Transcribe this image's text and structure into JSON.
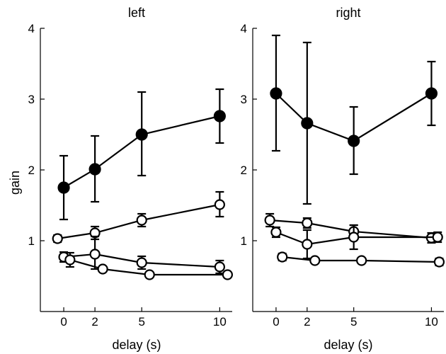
{
  "chart_data": [
    {
      "type": "line",
      "title": "left",
      "xlabel": "delay (s)",
      "ylabel": "gain",
      "xlim": [
        -1.5,
        10.8
      ],
      "ylim": [
        0,
        4
      ],
      "xticks": [
        0,
        2,
        5,
        10
      ],
      "yticks": [
        1,
        2,
        3,
        4
      ],
      "series": [
        {
          "marker": "filled",
          "color": "#000000",
          "points": [
            {
              "x": 0,
              "y": 1.75,
              "lo": 1.3,
              "hi": 2.2
            },
            {
              "x": 2,
              "y": 2.01,
              "lo": 1.55,
              "hi": 2.48
            },
            {
              "x": 5,
              "y": 2.5,
              "lo": 1.92,
              "hi": 3.1
            },
            {
              "x": 10,
              "y": 2.76,
              "lo": 2.38,
              "hi": 3.14
            }
          ]
        },
        {
          "marker": "open",
          "color": "#000000",
          "points": [
            {
              "x": -0.4,
              "y": 1.03,
              "lo": 0.98,
              "hi": 1.08
            },
            {
              "x": 2,
              "y": 1.11,
              "lo": 1.02,
              "hi": 1.2
            },
            {
              "x": 5,
              "y": 1.29,
              "lo": 1.2,
              "hi": 1.38
            },
            {
              "x": 10,
              "y": 1.51,
              "lo": 1.34,
              "hi": 1.69
            }
          ]
        },
        {
          "marker": "open",
          "color": "#000000",
          "points": [
            {
              "x": 0,
              "y": 0.77,
              "lo": 0.7,
              "hi": 0.84
            },
            {
              "x": 2,
              "y": 0.81,
              "lo": 0.6,
              "hi": 1.06
            },
            {
              "x": 5,
              "y": 0.69,
              "lo": 0.6,
              "hi": 0.78
            },
            {
              "x": 10,
              "y": 0.63,
              "lo": 0.54,
              "hi": 0.72
            }
          ]
        },
        {
          "marker": "open",
          "color": "#000000",
          "points": [
            {
              "x": 0.4,
              "y": 0.73,
              "lo": 0.63,
              "hi": 0.83
            },
            {
              "x": 2.5,
              "y": 0.6,
              "lo": 0.57,
              "hi": 0.63
            },
            {
              "x": 5.5,
              "y": 0.52,
              "lo": 0.49,
              "hi": 0.55
            },
            {
              "x": 10.5,
              "y": 0.52,
              "lo": 0.49,
              "hi": 0.55
            }
          ]
        }
      ]
    },
    {
      "type": "line",
      "title": "right",
      "xlabel": "delay (s)",
      "ylabel": "",
      "xlim": [
        -1.5,
        10.8
      ],
      "ylim": [
        0,
        4
      ],
      "xticks": [
        0,
        2,
        5,
        10
      ],
      "yticks": [
        1,
        2,
        3,
        4
      ],
      "series": [
        {
          "marker": "filled",
          "color": "#000000",
          "points": [
            {
              "x": 0,
              "y": 3.08,
              "lo": 2.27,
              "hi": 3.9
            },
            {
              "x": 2,
              "y": 2.66,
              "lo": 1.52,
              "hi": 3.8
            },
            {
              "x": 5,
              "y": 2.41,
              "lo": 1.94,
              "hi": 2.89
            },
            {
              "x": 10,
              "y": 3.08,
              "lo": 2.63,
              "hi": 3.53
            }
          ]
        },
        {
          "marker": "open",
          "color": "#000000",
          "points": [
            {
              "x": -0.4,
              "y": 1.29,
              "lo": 1.2,
              "hi": 1.38
            },
            {
              "x": 2,
              "y": 1.25,
              "lo": 1.18,
              "hi": 1.32
            },
            {
              "x": 5,
              "y": 1.13,
              "lo": 1.04,
              "hi": 1.22
            },
            {
              "x": 10,
              "y": 1.04,
              "lo": 0.97,
              "hi": 1.11
            }
          ]
        },
        {
          "marker": "open",
          "color": "#000000",
          "points": [
            {
              "x": 0,
              "y": 1.12,
              "lo": 1.05,
              "hi": 1.19
            },
            {
              "x": 2,
              "y": 0.95,
              "lo": 0.75,
              "hi": 1.15
            },
            {
              "x": 5,
              "y": 1.05,
              "lo": 0.88,
              "hi": 1.22
            },
            {
              "x": 10.4,
              "y": 1.05,
              "lo": 0.98,
              "hi": 1.12
            }
          ]
        },
        {
          "marker": "open",
          "color": "#000000",
          "points": [
            {
              "x": 0.4,
              "y": 0.77,
              "lo": 0.72,
              "hi": 0.82
            },
            {
              "x": 2.5,
              "y": 0.72,
              "lo": 0.69,
              "hi": 0.75
            },
            {
              "x": 5.5,
              "y": 0.72,
              "lo": 0.69,
              "hi": 0.75
            },
            {
              "x": 10.5,
              "y": 0.7,
              "lo": 0.65,
              "hi": 0.75
            }
          ]
        }
      ]
    }
  ]
}
